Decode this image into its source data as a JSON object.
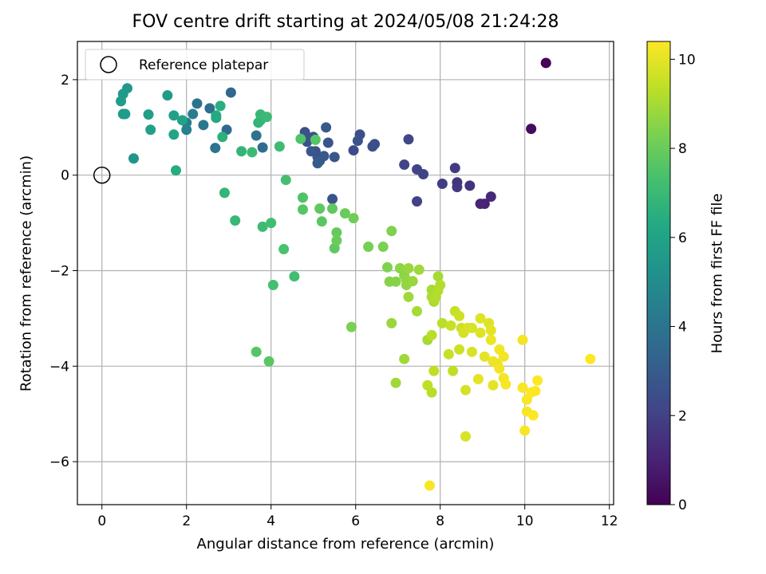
{
  "chart_data": {
    "type": "scatter",
    "title": "FOV centre drift starting at 2024/05/08 21:24:28",
    "xlabel": "Angular distance from reference (arcmin)",
    "ylabel": "Rotation from reference (arcmin)",
    "xlim": [
      -0.58,
      12.1
    ],
    "ylim": [
      -6.9,
      2.8
    ],
    "xticks": [
      0,
      2,
      4,
      6,
      8,
      10,
      12
    ],
    "xtick_labels": [
      "0",
      "2",
      "4",
      "6",
      "8",
      "10",
      "12"
    ],
    "yticks": [
      2,
      0,
      -2,
      -4,
      -6
    ],
    "ytick_labels": [
      "2",
      "0",
      "−2",
      "−4",
      "−6"
    ],
    "grid": true,
    "legend": {
      "placement": "top-left",
      "entries": [
        "Reference platepar"
      ]
    },
    "reference_point": {
      "x": 0,
      "y": 0
    },
    "colorbar": {
      "label": "Hours from first FF file",
      "colormap": "viridis",
      "range": [
        0,
        10.4
      ],
      "ticks": [
        0,
        2,
        4,
        6,
        8,
        10
      ],
      "tick_labels": [
        "0",
        "2",
        "4",
        "6",
        "8",
        "10"
      ]
    },
    "points": [
      [
        10.5,
        2.35,
        0.1
      ],
      [
        10.15,
        0.97,
        0.3
      ],
      [
        9.2,
        -0.45,
        1.2
      ],
      [
        9.05,
        -0.6,
        1.0
      ],
      [
        8.95,
        -0.6,
        1.1
      ],
      [
        8.7,
        -0.22,
        1.5
      ],
      [
        8.4,
        -0.25,
        1.7
      ],
      [
        8.4,
        -0.15,
        1.6
      ],
      [
        8.35,
        0.15,
        1.8
      ],
      [
        8.05,
        -0.18,
        1.9
      ],
      [
        7.6,
        0.02,
        2.0
      ],
      [
        7.45,
        0.12,
        2.1
      ],
      [
        7.45,
        -0.55,
        2.0
      ],
      [
        7.25,
        0.75,
        2.2
      ],
      [
        7.15,
        0.22,
        2.1
      ],
      [
        6.45,
        0.65,
        2.5
      ],
      [
        6.4,
        0.6,
        2.5
      ],
      [
        6.1,
        0.85,
        2.5
      ],
      [
        6.05,
        0.72,
        2.6
      ],
      [
        5.95,
        0.52,
        2.4
      ],
      [
        5.45,
        -0.5,
        2.7
      ],
      [
        5.5,
        0.38,
        2.8
      ],
      [
        5.35,
        0.68,
        2.7
      ],
      [
        5.3,
        1.0,
        2.9
      ],
      [
        5.25,
        0.4,
        2.9
      ],
      [
        5.15,
        0.3,
        2.8
      ],
      [
        5.1,
        0.38,
        2.9
      ],
      [
        5.1,
        0.25,
        3.0
      ],
      [
        5.05,
        0.5,
        2.6
      ],
      [
        5.0,
        0.8,
        2.7
      ],
      [
        4.95,
        0.5,
        2.8
      ],
      [
        4.9,
        0.78,
        2.6
      ],
      [
        4.85,
        0.7,
        2.6
      ],
      [
        4.8,
        0.9,
        2.5
      ],
      [
        3.05,
        1.73,
        3.4
      ],
      [
        2.95,
        0.95,
        3.6
      ],
      [
        2.68,
        0.57,
        4.0
      ],
      [
        2.55,
        1.4,
        3.8
      ],
      [
        2.4,
        1.05,
        4.1
      ],
      [
        2.25,
        1.5,
        4.0
      ],
      [
        2.15,
        1.28,
        4.3
      ],
      [
        2.0,
        1.1,
        4.4
      ],
      [
        2.0,
        0.95,
        4.5
      ],
      [
        3.8,
        0.58,
        3.7
      ],
      [
        3.65,
        0.83,
        3.9
      ],
      [
        0.75,
        0.35,
        5.4
      ],
      [
        0.6,
        1.82,
        5.5
      ],
      [
        0.5,
        1.7,
        5.6
      ],
      [
        0.45,
        1.55,
        5.7
      ],
      [
        0.5,
        1.28,
        5.6
      ],
      [
        0.55,
        1.28,
        5.7
      ],
      [
        1.1,
        1.27,
        5.8
      ],
      [
        1.15,
        0.95,
        5.9
      ],
      [
        1.55,
        1.67,
        5.7
      ],
      [
        1.7,
        1.25,
        5.9
      ],
      [
        1.7,
        0.85,
        6.1
      ],
      [
        1.75,
        0.1,
        6.4
      ],
      [
        1.9,
        1.15,
        6.0
      ],
      [
        2.7,
        1.2,
        6.2
      ],
      [
        2.7,
        1.25,
        6.3
      ],
      [
        2.8,
        1.45,
        6.5
      ],
      [
        2.85,
        0.8,
        6.6
      ],
      [
        2.9,
        -0.37,
        6.8
      ],
      [
        3.15,
        -0.95,
        6.9
      ],
      [
        3.3,
        0.5,
        6.8
      ],
      [
        3.55,
        0.48,
        7.0
      ],
      [
        3.7,
        1.1,
        6.7
      ],
      [
        3.75,
        1.15,
        6.8
      ],
      [
        3.75,
        1.27,
        6.9
      ],
      [
        3.9,
        1.22,
        7.0
      ],
      [
        3.8,
        -1.08,
        7.1
      ],
      [
        4.0,
        -1.0,
        7.2
      ],
      [
        4.05,
        -2.3,
        7.3
      ],
      [
        4.2,
        0.6,
        7.1
      ],
      [
        4.3,
        -1.55,
        7.4
      ],
      [
        4.35,
        -0.1,
        7.3
      ],
      [
        4.55,
        -2.12,
        7.2
      ],
      [
        4.7,
        0.76,
        7.5
      ],
      [
        4.75,
        -0.47,
        7.5
      ],
      [
        4.75,
        -0.72,
        7.6
      ],
      [
        5.05,
        0.74,
        7.6
      ],
      [
        5.15,
        -0.7,
        7.8
      ],
      [
        5.2,
        -0.97,
        7.7
      ],
      [
        5.45,
        -0.7,
        7.8
      ],
      [
        5.5,
        -1.53,
        7.8
      ],
      [
        5.55,
        -1.2,
        7.9
      ],
      [
        5.55,
        -1.37,
        8.0
      ],
      [
        5.75,
        -0.8,
        8.0
      ],
      [
        5.95,
        -0.9,
        8.1
      ],
      [
        3.65,
        -3.7,
        7.6
      ],
      [
        3.95,
        -3.9,
        7.7
      ],
      [
        5.9,
        -3.18,
        8.3
      ],
      [
        6.3,
        -1.5,
        8.2
      ],
      [
        6.65,
        -1.5,
        8.3
      ],
      [
        6.85,
        -1.17,
        8.4
      ],
      [
        6.75,
        -1.93,
        8.4
      ],
      [
        6.8,
        -2.23,
        8.5
      ],
      [
        6.95,
        -2.23,
        8.5
      ],
      [
        7.05,
        -1.95,
        8.6
      ],
      [
        7.15,
        -2.1,
        8.6
      ],
      [
        7.2,
        -2.3,
        8.7
      ],
      [
        7.2,
        -2.2,
        8.7
      ],
      [
        7.25,
        -1.95,
        8.8
      ],
      [
        7.35,
        -2.22,
        8.8
      ],
      [
        7.5,
        -1.98,
        8.9
      ],
      [
        7.25,
        -2.55,
        8.9
      ],
      [
        7.45,
        -2.85,
        9.0
      ],
      [
        6.85,
        -3.1,
        8.8
      ],
      [
        6.95,
        -4.35,
        8.9
      ],
      [
        7.15,
        -3.85,
        8.9
      ],
      [
        7.7,
        -3.45,
        9.0
      ],
      [
        7.8,
        -2.4,
        9.0
      ],
      [
        7.8,
        -2.55,
        9.1
      ],
      [
        7.85,
        -2.65,
        9.1
      ],
      [
        7.9,
        -2.55,
        9.2
      ],
      [
        7.95,
        -2.42,
        9.2
      ],
      [
        7.95,
        -2.12,
        9.0
      ],
      [
        8.0,
        -2.3,
        9.2
      ],
      [
        7.8,
        -3.35,
        9.3
      ],
      [
        7.85,
        -4.1,
        9.4
      ],
      [
        7.8,
        -4.55,
        9.3
      ],
      [
        7.7,
        -4.4,
        9.4
      ],
      [
        8.05,
        -3.1,
        9.3
      ],
      [
        8.25,
        -3.15,
        9.5
      ],
      [
        8.2,
        -3.75,
        9.5
      ],
      [
        8.3,
        -4.1,
        9.4
      ],
      [
        8.35,
        -2.85,
        9.5
      ],
      [
        8.45,
        -2.95,
        9.6
      ],
      [
        8.5,
        -3.2,
        9.6
      ],
      [
        8.55,
        -3.3,
        9.7
      ],
      [
        8.45,
        -3.65,
        9.6
      ],
      [
        8.6,
        -4.5,
        9.7
      ],
      [
        8.6,
        -5.47,
        9.8
      ],
      [
        8.65,
        -3.2,
        9.8
      ],
      [
        8.75,
        -3.2,
        9.8
      ],
      [
        8.75,
        -3.7,
        9.8
      ],
      [
        8.95,
        -3.3,
        9.9
      ],
      [
        8.95,
        -3.0,
        9.9
      ],
      [
        8.9,
        -4.27,
        10.0
      ],
      [
        9.05,
        -3.8,
        10.0
      ],
      [
        9.15,
        -3.1,
        9.9
      ],
      [
        9.2,
        -3.25,
        10.0
      ],
      [
        9.2,
        -3.45,
        10.1
      ],
      [
        9.25,
        -3.9,
        10.1
      ],
      [
        9.25,
        -4.4,
        10.0
      ],
      [
        9.35,
        -3.95,
        10.1
      ],
      [
        9.4,
        -4.05,
        10.2
      ],
      [
        9.4,
        -3.65,
        10.2
      ],
      [
        9.5,
        -3.8,
        10.2
      ],
      [
        9.5,
        -4.25,
        10.2
      ],
      [
        9.55,
        -4.38,
        10.3
      ],
      [
        9.95,
        -3.45,
        10.2
      ],
      [
        9.95,
        -4.45,
        10.3
      ],
      [
        10.0,
        -5.35,
        10.3
      ],
      [
        10.05,
        -4.95,
        10.3
      ],
      [
        10.05,
        -4.7,
        10.3
      ],
      [
        10.15,
        -4.55,
        10.4
      ],
      [
        10.2,
        -5.03,
        10.4
      ],
      [
        10.25,
        -4.52,
        10.4
      ],
      [
        10.3,
        -4.3,
        10.4
      ],
      [
        11.55,
        -3.85,
        10.4
      ],
      [
        7.75,
        -6.5,
        10.3
      ]
    ]
  }
}
